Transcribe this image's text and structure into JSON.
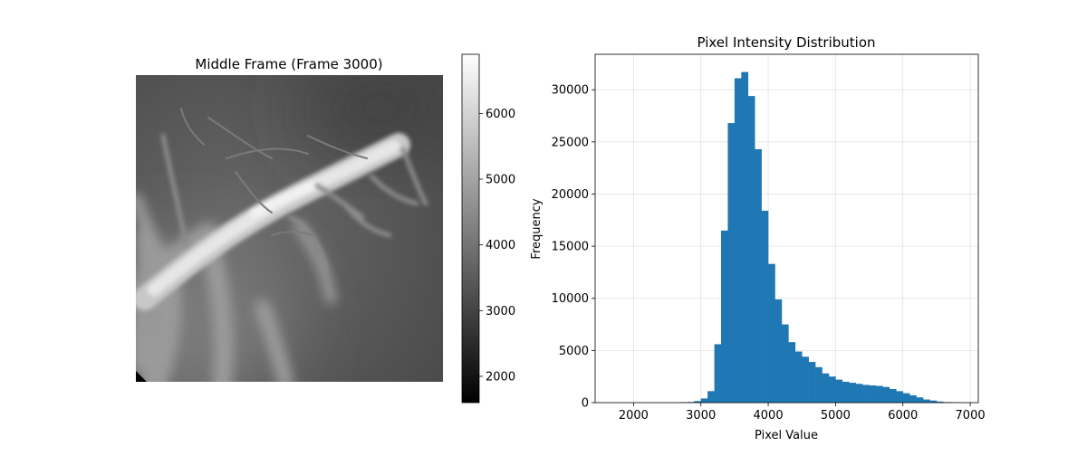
{
  "chart_data": [
    {
      "type": "heatmap",
      "title": "Middle Frame (Frame 3000)",
      "colormap": "gray",
      "colorbar": {
        "range": [
          1600,
          6900
        ],
        "ticks": [
          2000,
          3000,
          4000,
          5000,
          6000
        ],
        "tick_labels": [
          "2000",
          "3000",
          "4000",
          "5000",
          "6000"
        ]
      }
    },
    {
      "type": "bar",
      "title": "Pixel Intensity Distribution",
      "xlabel": "Pixel Value",
      "ylabel": "Frequency",
      "xlim": [
        1430,
        7120
      ],
      "ylim": [
        0,
        33400
      ],
      "grid": true,
      "bar_color": "#1f77b4",
      "x_ticks": [
        2000,
        3000,
        4000,
        5000,
        6000,
        7000
      ],
      "x_tick_labels": [
        "2000",
        "3000",
        "4000",
        "5000",
        "6000",
        "7000"
      ],
      "y_ticks": [
        0,
        5000,
        10000,
        15000,
        20000,
        25000,
        30000
      ],
      "y_tick_labels": [
        "0",
        "5000",
        "10000",
        "15000",
        "20000",
        "25000",
        "30000"
      ],
      "bin_start": 1600,
      "bin_width": 100,
      "values": [
        0,
        0,
        0,
        0,
        0,
        0,
        0,
        0,
        0,
        0,
        0,
        30,
        60,
        150,
        400,
        1100,
        5600,
        16500,
        26800,
        31100,
        31700,
        29400,
        24300,
        18400,
        13300,
        9900,
        7500,
        5800,
        4900,
        4400,
        3900,
        3400,
        2800,
        2500,
        2200,
        2000,
        1900,
        1800,
        1700,
        1650,
        1600,
        1500,
        1300,
        1100,
        900,
        700,
        500,
        300,
        200,
        100,
        50,
        30
      ]
    }
  ]
}
